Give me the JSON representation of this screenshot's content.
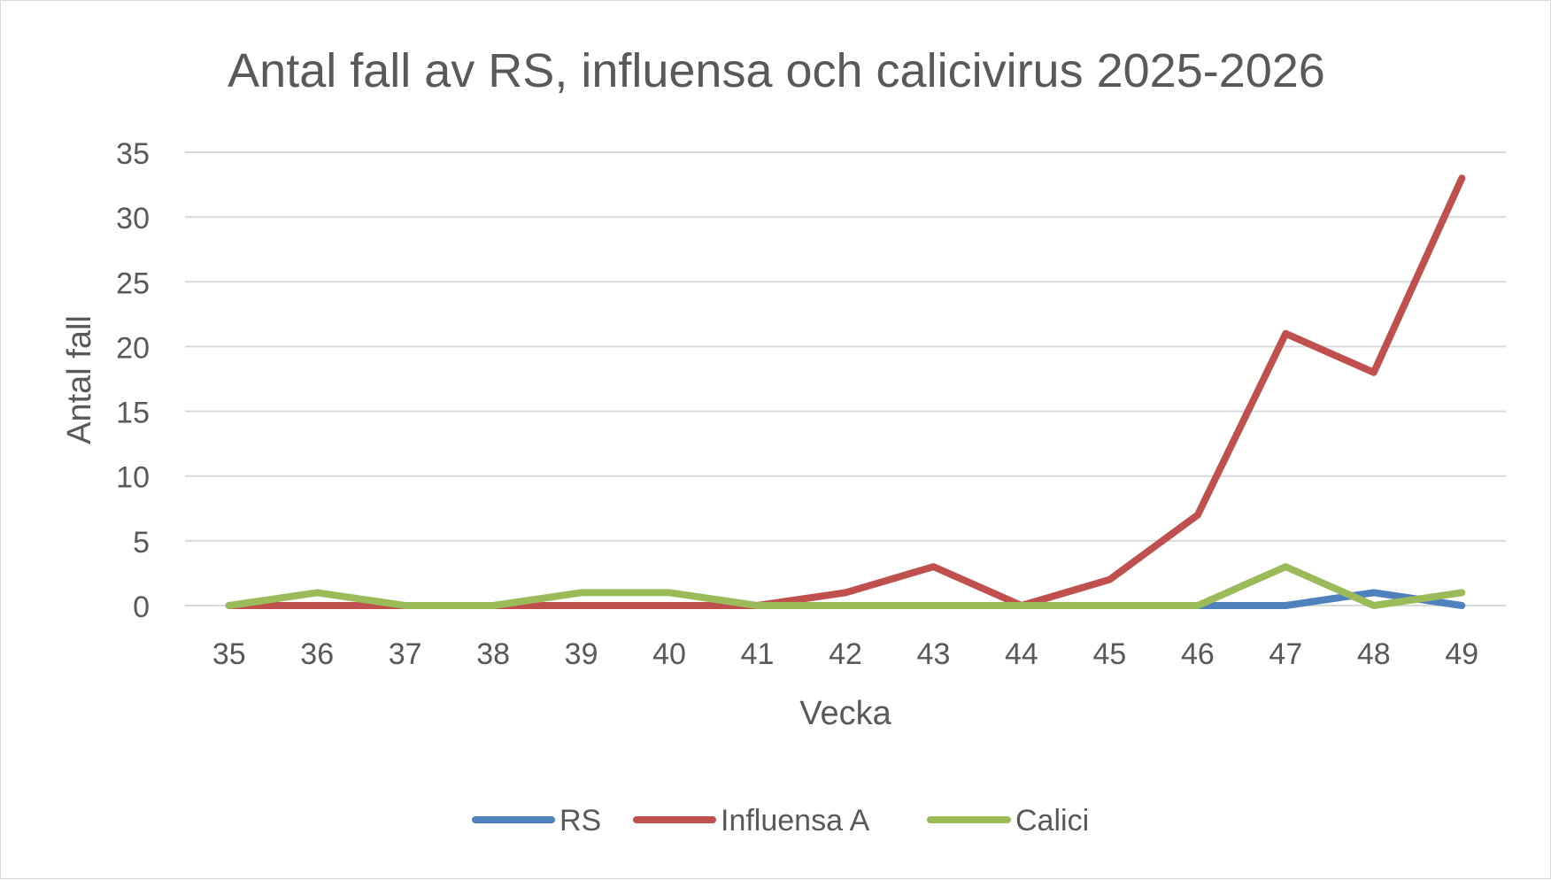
{
  "chart_data": {
    "type": "line",
    "title": "Antal fall av RS, influensa och calicivirus 2025-2026",
    "xlabel": "Vecka",
    "ylabel": "Antal fall",
    "categories": [
      "35",
      "36",
      "37",
      "38",
      "39",
      "40",
      "41",
      "42",
      "43",
      "44",
      "45",
      "46",
      "47",
      "48",
      "49"
    ],
    "ylim": [
      0,
      35
    ],
    "yticks": [
      "0",
      "5",
      "10",
      "15",
      "20",
      "25",
      "30",
      "35"
    ],
    "grid": true,
    "legend_position": "bottom",
    "series": [
      {
        "name": "RS",
        "color": "#4f81bd",
        "values": [
          0,
          0,
          0,
          0,
          0,
          0,
          0,
          0,
          0,
          0,
          0,
          0,
          0,
          1,
          0
        ]
      },
      {
        "name": "Influensa A",
        "color": "#c0504d",
        "values": [
          0,
          0,
          0,
          0,
          0,
          0,
          0,
          1,
          3,
          0,
          2,
          7,
          21,
          18,
          33
        ]
      },
      {
        "name": "Calici",
        "color": "#9bbb59",
        "values": [
          0,
          1,
          0,
          0,
          1,
          1,
          0,
          0,
          0,
          0,
          0,
          0,
          3,
          0,
          1
        ]
      }
    ]
  }
}
